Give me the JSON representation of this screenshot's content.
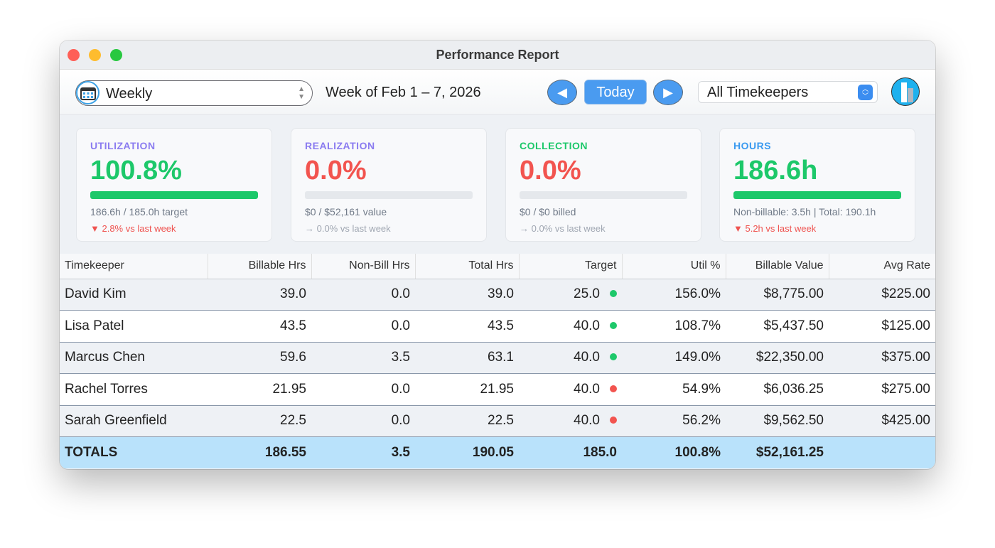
{
  "window": {
    "title": "Performance Report"
  },
  "toolbar": {
    "period": "Weekly",
    "week_label": "Week of Feb 1 – 7, 2026",
    "today": "Today",
    "timekeeper_filter": "All Timekeepers"
  },
  "cards": [
    {
      "heading": "UTILIZATION",
      "heading_color": "#8b7cf0",
      "value": "100.8%",
      "value_color": "#1dc86a",
      "progress": 1.0,
      "sub": "186.6h / 185.0h target",
      "trend": "▼ 2.8% vs last week",
      "trend_color": "#ef5350"
    },
    {
      "heading": "REALIZATION",
      "heading_color": "#8b7cf0",
      "value": "0.0%",
      "value_color": "#f2544f",
      "progress": 0,
      "sub": "$0 / $52,161 value",
      "trend": "→ 0.0% vs last week",
      "trend_color": "#a0a7b2"
    },
    {
      "heading": "COLLECTION",
      "heading_color": "#1dc86a",
      "value": "0.0%",
      "value_color": "#f2544f",
      "progress": 0,
      "sub": "$0 / $0 billed",
      "trend": "→ 0.0% vs last week",
      "trend_color": "#a0a7b2"
    },
    {
      "heading": "HOURS",
      "heading_color": "#3a9af0",
      "value": "186.6h",
      "value_color": "#1dc86a",
      "progress": 1.0,
      "sub": "Non-billable: 3.5h | Total: 190.1h",
      "trend": "▼ 5.2h vs last week",
      "trend_color": "#ef5350"
    }
  ],
  "table": {
    "headers": [
      "Timekeeper",
      "Billable Hrs",
      "Non-Bill Hrs",
      "Total Hrs",
      "Target",
      "Util %",
      "Billable Value",
      "Avg Rate"
    ],
    "rows": [
      {
        "name": "David Kim",
        "billable": "39.0",
        "nonbill": "0.0",
        "total": "39.0",
        "target": "25.0",
        "status": "green",
        "util": "156.0%",
        "value": "$8,775.00",
        "rate": "$225.00"
      },
      {
        "name": "Lisa Patel",
        "billable": "43.5",
        "nonbill": "0.0",
        "total": "43.5",
        "target": "40.0",
        "status": "green",
        "util": "108.7%",
        "value": "$5,437.50",
        "rate": "$125.00"
      },
      {
        "name": "Marcus Chen",
        "billable": "59.6",
        "nonbill": "3.5",
        "total": "63.1",
        "target": "40.0",
        "status": "green",
        "util": "149.0%",
        "value": "$22,350.00",
        "rate": "$375.00"
      },
      {
        "name": "Rachel Torres",
        "billable": "21.95",
        "nonbill": "0.0",
        "total": "21.95",
        "target": "40.0",
        "status": "red",
        "util": "54.9%",
        "value": "$6,036.25",
        "rate": "$275.00"
      },
      {
        "name": "Sarah Greenfield",
        "billable": "22.5",
        "nonbill": "0.0",
        "total": "22.5",
        "target": "40.0",
        "status": "red",
        "util": "56.2%",
        "value": "$9,562.50",
        "rate": "$425.00"
      }
    ],
    "totals": {
      "name": "TOTALS",
      "billable": "186.55",
      "nonbill": "3.5",
      "total": "190.05",
      "target": "185.0",
      "util": "100.8%",
      "value": "$52,161.25",
      "rate": ""
    }
  },
  "colors": {
    "green": "#1dc86a",
    "red": "#f2544f"
  }
}
